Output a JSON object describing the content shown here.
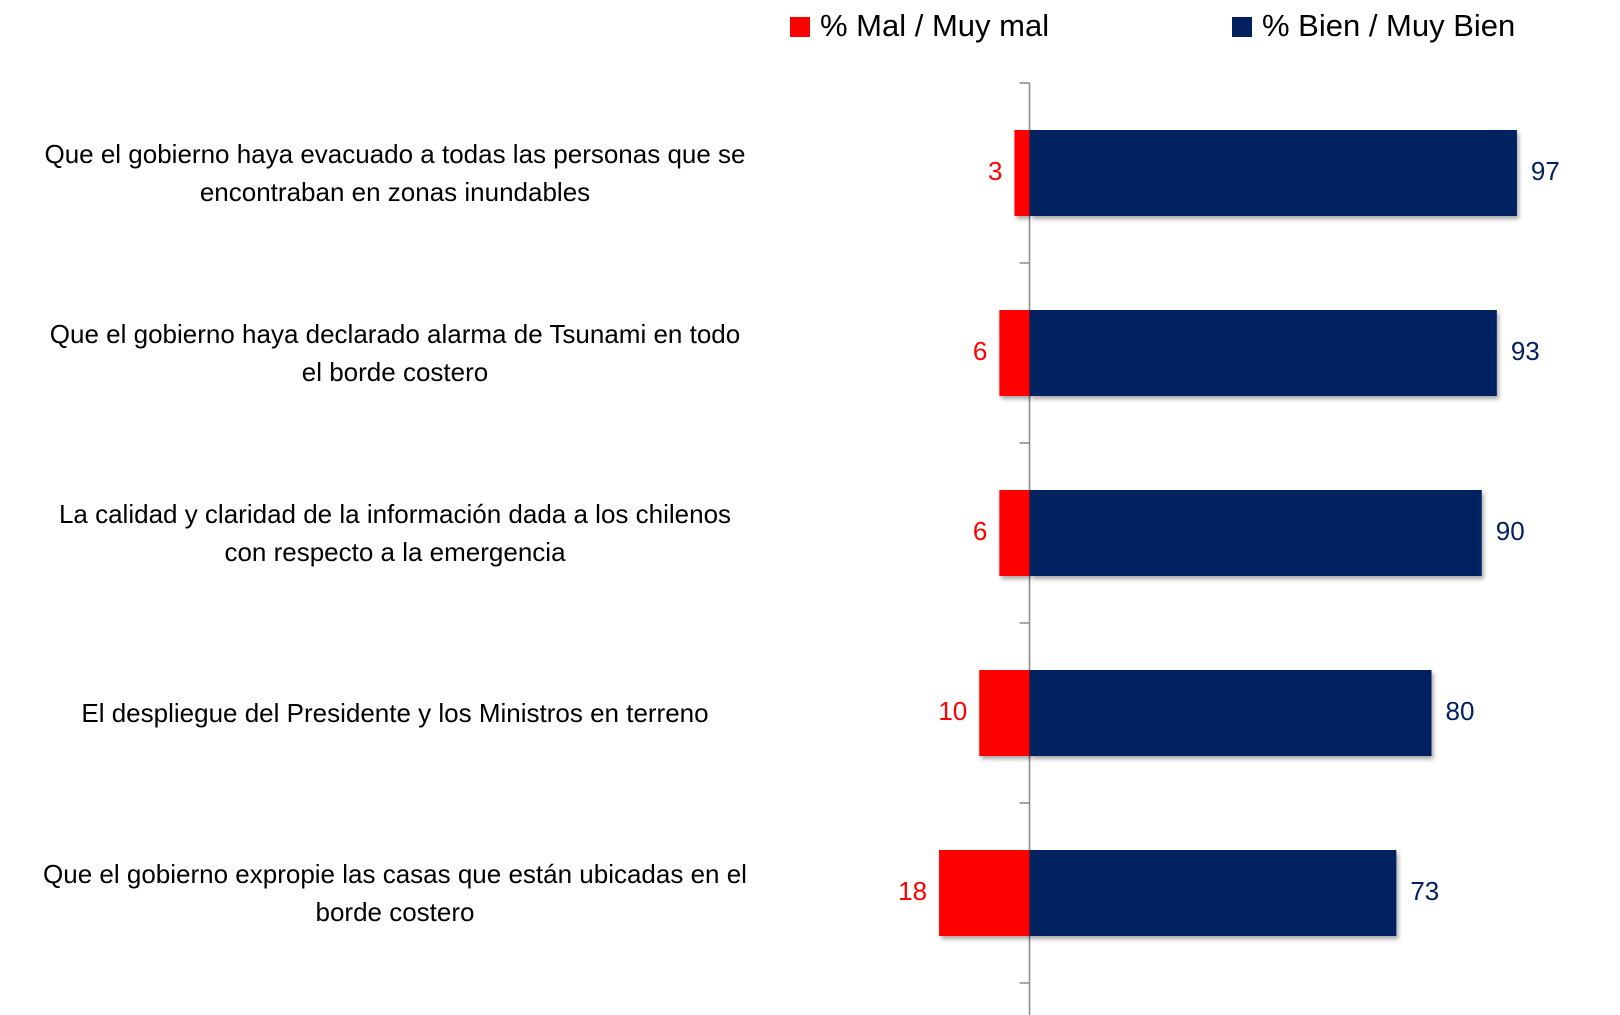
{
  "chart_data": {
    "type": "diverging-bar",
    "categories": [
      "Que el gobierno  haya evacuado a todas las personas que se\nencontraban en zonas inundables",
      "Que  el gobierno haya declarado alarma de Tsunami en todo\nel borde costero",
      "La calidad y claridad de la información dada a los chilenos\ncon respecto a la emergencia",
      "El despliegue del Presidente y los Ministros en terreno",
      "Que el gobierno expropie las casas que están ubicadas en el\nborde costero"
    ],
    "series": [
      {
        "name": "% Mal / Muy mal",
        "color": "#ff0000",
        "side": "left",
        "values": [
          3,
          6,
          6,
          10,
          18
        ]
      },
      {
        "name": "% Bien / Muy Bien",
        "color": "#002060",
        "side": "right",
        "values": [
          97,
          93,
          90,
          80,
          73
        ]
      }
    ],
    "xlim": [
      -20,
      100
    ],
    "legend": "top"
  }
}
